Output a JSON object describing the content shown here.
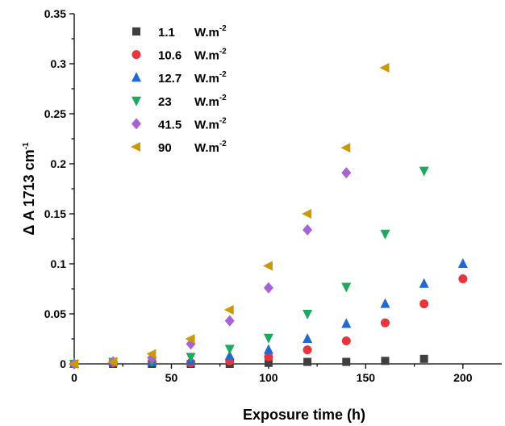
{
  "chart_data": {
    "type": "scatter",
    "title": "",
    "xlabel": "Exposure time (h)",
    "ylabel": "Δ A 1713 cm",
    "ylabel_sup": "-1",
    "xlim": [
      0,
      220
    ],
    "ylim": [
      0,
      0.35
    ],
    "xticks": [
      0,
      50,
      100,
      150,
      200
    ],
    "xtick_labels": [
      "0",
      "50",
      "100",
      "150",
      "200"
    ],
    "yticks": [
      0,
      0.05,
      0.1,
      0.15,
      0.2,
      0.25,
      0.3,
      0.35
    ],
    "ytick_labels": [
      "0",
      "0.05",
      "0.1",
      "0.15",
      "0.2",
      "0.25",
      "0.3",
      "0.35"
    ],
    "grid": false,
    "legend_position": "top-left",
    "series": [
      {
        "name": "1.1",
        "unit": "W.m",
        "unit_sup": "-2",
        "marker": "square",
        "color": "#3f3f3f",
        "points": [
          [
            0,
            0
          ],
          [
            20,
            0
          ],
          [
            40,
            0
          ],
          [
            60,
            0
          ],
          [
            80,
            0
          ],
          [
            100,
            0.001
          ],
          [
            120,
            0.002
          ],
          [
            140,
            0.002
          ],
          [
            160,
            0.003
          ],
          [
            180,
            0.005
          ]
        ]
      },
      {
        "name": "10.6",
        "unit": "W.m",
        "unit_sup": "-2",
        "marker": "circle",
        "color": "#e8343d",
        "points": [
          [
            0,
            0
          ],
          [
            20,
            0.001
          ],
          [
            40,
            0.002
          ],
          [
            60,
            0.001
          ],
          [
            80,
            0.003
          ],
          [
            100,
            0.007
          ],
          [
            120,
            0.014
          ],
          [
            140,
            0.023
          ],
          [
            160,
            0.041
          ],
          [
            180,
            0.06
          ],
          [
            200,
            0.085
          ]
        ]
      },
      {
        "name": "12.7",
        "unit": "W.m",
        "unit_sup": "-2",
        "marker": "triangle-up",
        "color": "#1f68d6",
        "points": [
          [
            0,
            0
          ],
          [
            20,
            0.002
          ],
          [
            40,
            0.002
          ],
          [
            60,
            0.003
          ],
          [
            80,
            0.008
          ],
          [
            100,
            0.014
          ],
          [
            120,
            0.025
          ],
          [
            140,
            0.04
          ],
          [
            160,
            0.06
          ],
          [
            180,
            0.08
          ],
          [
            200,
            0.1
          ]
        ]
      },
      {
        "name": "23",
        "unit": "W.m",
        "unit_sup": "-2",
        "marker": "triangle-down",
        "color": "#1fa860",
        "points": [
          [
            0,
            0
          ],
          [
            20,
            0.002
          ],
          [
            40,
            0.003
          ],
          [
            60,
            0.007
          ],
          [
            80,
            0.015
          ],
          [
            100,
            0.026
          ],
          [
            120,
            0.05
          ],
          [
            140,
            0.077
          ],
          [
            160,
            0.13
          ],
          [
            180,
            0.193
          ]
        ]
      },
      {
        "name": "41.5",
        "unit": "W.m",
        "unit_sup": "-2",
        "marker": "diamond",
        "color": "#a862d6",
        "points": [
          [
            0,
            0
          ],
          [
            20,
            0.002
          ],
          [
            40,
            0.006
          ],
          [
            60,
            0.02
          ],
          [
            80,
            0.043
          ],
          [
            100,
            0.076
          ],
          [
            120,
            0.134
          ],
          [
            140,
            0.191
          ]
        ]
      },
      {
        "name": "90",
        "unit": "W.m",
        "unit_sup": "-2",
        "marker": "triangle-left",
        "color": "#c99a06",
        "points": [
          [
            0,
            0
          ],
          [
            20,
            0.002
          ],
          [
            40,
            0.01
          ],
          [
            60,
            0.025
          ],
          [
            80,
            0.054
          ],
          [
            100,
            0.098
          ],
          [
            120,
            0.15
          ],
          [
            140,
            0.216
          ],
          [
            160,
            0.296
          ]
        ]
      }
    ]
  }
}
